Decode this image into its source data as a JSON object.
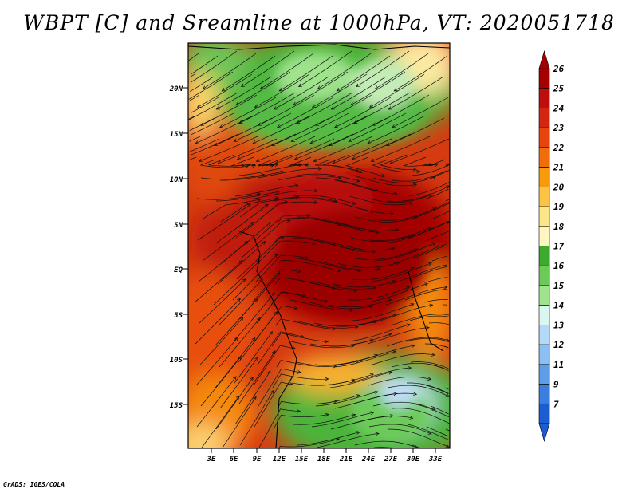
{
  "title": "WBPT [C] and Sreamline at 1000hPa, VT: 2020051718",
  "credit": "GrADS: IGES/COLA",
  "map": {
    "lat_labels": [
      "20N",
      "15N",
      "10N",
      "5N",
      "EQ",
      "5S",
      "10S",
      "15S"
    ],
    "lon_labels": [
      "3E",
      "6E",
      "9E",
      "12E",
      "15E",
      "18E",
      "21E",
      "24E",
      "27E",
      "30E",
      "33E"
    ]
  },
  "colorbar": {
    "labels": [
      "26",
      "25",
      "24",
      "23",
      "22",
      "21",
      "20",
      "19",
      "18",
      "17",
      "16",
      "15",
      "14",
      "13",
      "12",
      "11",
      "9",
      "7"
    ],
    "colors": [
      "#a50000",
      "#bd0d0d",
      "#d42510",
      "#e8450e",
      "#f06e0a",
      "#f79a0c",
      "#fcc447",
      "#fde68a",
      "#fff7bf",
      "#3daa2e",
      "#6ccb58",
      "#9fe38c",
      "#daf6f0",
      "#b5d8f8",
      "#8cc0f3",
      "#5e9ee8",
      "#3a7fdf",
      "#1c5ed0"
    ]
  }
}
